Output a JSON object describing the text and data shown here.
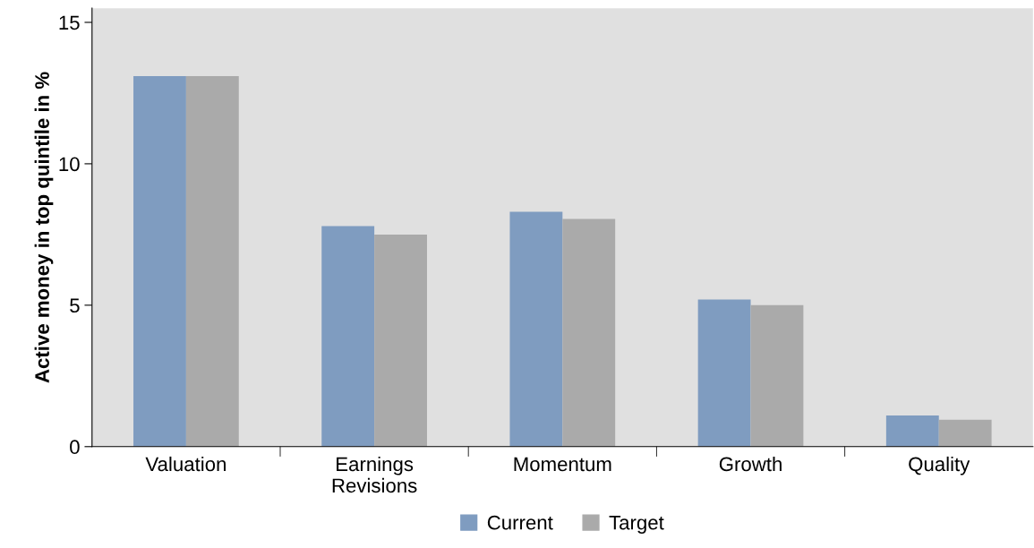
{
  "chart_data": {
    "type": "bar",
    "ylabel": "Active money in top quintile in %",
    "categories": [
      "Valuation",
      "Earnings\nRevisions",
      "Momentum",
      "Growth",
      "Quality"
    ],
    "series": [
      {
        "name": "Current",
        "color": "#7f9cc0",
        "values": [
          13.1,
          7.8,
          8.3,
          5.2,
          1.1
        ]
      },
      {
        "name": "Target",
        "color": "#aaaaaa",
        "values": [
          13.1,
          7.5,
          8.05,
          5.0,
          0.95
        ]
      }
    ],
    "ylim": [
      0,
      15.5
    ],
    "yticks": [
      0,
      5,
      10,
      15
    ],
    "grid": false,
    "legend": "bottom"
  }
}
